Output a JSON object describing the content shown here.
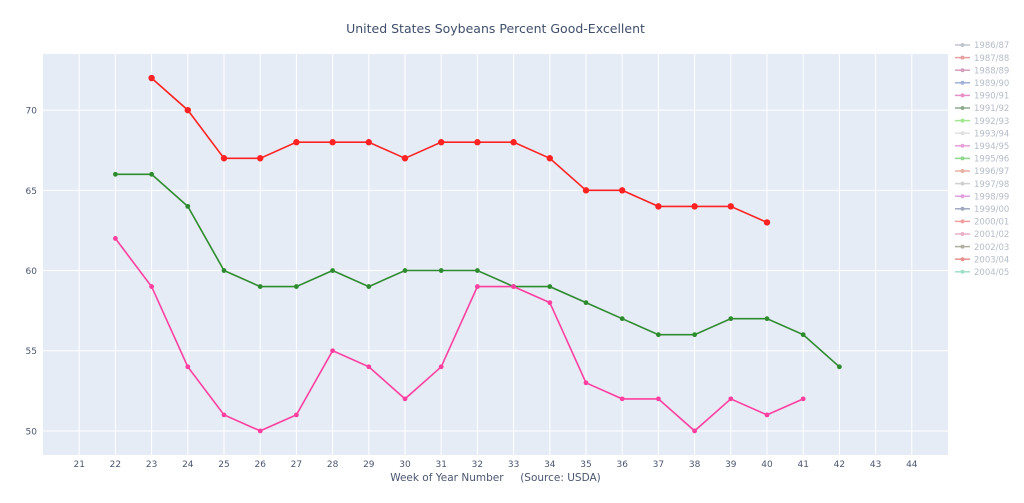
{
  "chart_data": {
    "type": "line",
    "title": "United States Soybeans Percent Good-Excellent",
    "xlabel": "Week of Year Number     (Source: USDA)",
    "ylabel": "",
    "xlim": [
      20,
      45
    ],
    "ylim": [
      48.5,
      73.5
    ],
    "x_ticks": [
      21,
      22,
      23,
      24,
      25,
      26,
      27,
      28,
      29,
      30,
      31,
      32,
      33,
      34,
      35,
      36,
      37,
      38,
      39,
      40,
      41,
      42,
      43,
      44
    ],
    "y_ticks": [
      50,
      55,
      60,
      65,
      70
    ],
    "grid": true,
    "legend_position": "right",
    "legend": [
      {
        "name": "1986/87",
        "color": "#c0c4cc",
        "visible": false
      },
      {
        "name": "1987/88",
        "color": "#e8a0a0",
        "visible": false
      },
      {
        "name": "1988/89",
        "color": "#d4a0c0",
        "visible": false
      },
      {
        "name": "1989/90",
        "color": "#a0b0d8",
        "visible": false
      },
      {
        "name": "1990/91",
        "color": "#e890c8",
        "visible": false
      },
      {
        "name": "1991/92",
        "color": "#8faa8f",
        "visible": false
      },
      {
        "name": "1992/93",
        "color": "#a0e890",
        "visible": false
      },
      {
        "name": "1993/94",
        "color": "#e0e0e0",
        "visible": false
      },
      {
        "name": "1994/95",
        "color": "#e8a0d8",
        "visible": false
      },
      {
        "name": "1995/96",
        "color": "#90d890",
        "visible": false
      },
      {
        "name": "1996/97",
        "color": "#e8b0a0",
        "visible": false
      },
      {
        "name": "1997/98",
        "color": "#d0d0d0",
        "visible": false
      },
      {
        "name": "1998/99",
        "color": "#e0a0e0",
        "visible": false
      },
      {
        "name": "1999/00",
        "color": "#a0a8c0",
        "visible": false
      },
      {
        "name": "2000/01",
        "color": "#f0a0a0",
        "visible": false
      },
      {
        "name": "2001/02",
        "color": "#e8b0c8",
        "visible": false
      },
      {
        "name": "2002/03",
        "color": "#b0b0a0",
        "visible": false
      },
      {
        "name": "2003/04",
        "color": "#e89090",
        "visible": false
      },
      {
        "name": "2004/05",
        "color": "#a0e0c8",
        "visible": false
      }
    ],
    "series": [
      {
        "color": "#ff2222",
        "marker_size": 3.2,
        "x": [
          23,
          24,
          25,
          26,
          27,
          28,
          29,
          30,
          31,
          32,
          33,
          34,
          35,
          36,
          37,
          38,
          39,
          40
        ],
        "y": [
          72,
          70,
          67,
          67,
          68,
          68,
          68,
          67,
          68,
          68,
          68,
          67,
          65,
          65,
          64,
          64,
          64,
          63
        ]
      },
      {
        "color": "#2e8b2e",
        "marker_size": 2.4,
        "x": [
          22,
          23,
          24,
          25,
          26,
          27,
          28,
          29,
          30,
          31,
          32,
          33,
          34,
          35,
          36,
          37,
          38,
          39,
          40,
          41,
          42
        ],
        "y": [
          66,
          66,
          64,
          60,
          59,
          59,
          60,
          59,
          60,
          60,
          60,
          59,
          59,
          58,
          57,
          56,
          56,
          57,
          57,
          56,
          54
        ]
      },
      {
        "color": "#ff3fa0",
        "marker_size": 2.4,
        "x": [
          22,
          23,
          24,
          25,
          26,
          27,
          28,
          29,
          30,
          31,
          32,
          33,
          34,
          35,
          36,
          37,
          38,
          39,
          40,
          41
        ],
        "y": [
          62,
          59,
          54,
          51,
          50,
          51,
          55,
          54,
          52,
          54,
          59,
          59,
          58,
          53,
          52,
          52,
          50,
          52,
          51,
          52
        ]
      }
    ]
  }
}
